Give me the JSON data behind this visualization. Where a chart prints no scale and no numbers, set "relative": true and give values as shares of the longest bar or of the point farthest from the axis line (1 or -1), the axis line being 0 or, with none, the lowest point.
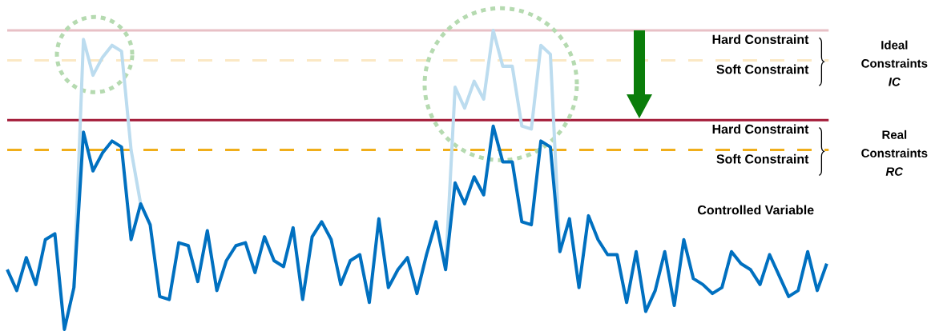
{
  "chart_data": {
    "type": "line",
    "relative": true,
    "categories": [
      null,
      null,
      null,
      null,
      null,
      null,
      null,
      null,
      null,
      null,
      null,
      null,
      null,
      null,
      null,
      null,
      null,
      null,
      null,
      null,
      null,
      null,
      null,
      null,
      null,
      null,
      null,
      null,
      null,
      null,
      null,
      null,
      null,
      null,
      null,
      null,
      null,
      null,
      null,
      null,
      null,
      null,
      null,
      null,
      null,
      null,
      null,
      null,
      null,
      null,
      null,
      null,
      null,
      null,
      null,
      null,
      null,
      null,
      null,
      null,
      null,
      null,
      null,
      null,
      null,
      null,
      null,
      null,
      null,
      null,
      null,
      null,
      null,
      null,
      null,
      null,
      null,
      null,
      null,
      null,
      null,
      null,
      null,
      null,
      null,
      null,
      null
    ],
    "series": [
      {
        "color": "#bcdcef",
        "values": [
          null,
          null,
          null,
          null,
          null,
          null,
          null,
          0.14,
          0.97,
          0.85,
          0.91,
          0.95,
          0.93,
          0.6,
          0.42,
          null,
          null,
          null,
          null,
          null,
          null,
          null,
          null,
          null,
          null,
          null,
          null,
          null,
          null,
          null,
          null,
          null,
          null,
          null,
          null,
          null,
          null,
          null,
          null,
          null,
          null,
          null,
          null,
          null,
          null,
          null,
          0.2,
          0.81,
          0.74,
          0.83,
          0.77,
          1.0,
          0.88,
          0.88,
          0.68,
          0.67,
          0.95,
          0.92,
          0.26,
          null,
          null,
          null,
          null,
          null,
          null,
          null,
          null,
          null,
          null,
          null,
          null,
          null,
          null,
          null,
          null,
          null,
          null,
          null,
          null,
          null,
          null,
          null,
          null,
          null,
          null,
          null,
          null
        ]
      },
      {
        "name": "Controlled Variable",
        "color": "#0070c0",
        "values": [
          0.2,
          0.13,
          0.24,
          0.15,
          0.3,
          0.32,
          0.0,
          0.14,
          0.66,
          0.53,
          0.59,
          0.63,
          0.61,
          0.3,
          0.42,
          0.35,
          0.11,
          0.1,
          0.29,
          0.28,
          0.16,
          0.33,
          0.13,
          0.23,
          0.28,
          0.29,
          0.19,
          0.31,
          0.23,
          0.21,
          0.34,
          0.1,
          0.31,
          0.36,
          0.3,
          0.15,
          0.23,
          0.25,
          0.09,
          0.37,
          0.14,
          0.2,
          0.24,
          0.12,
          0.25,
          0.36,
          0.2,
          0.49,
          0.42,
          0.51,
          0.45,
          0.68,
          0.56,
          0.56,
          0.36,
          0.35,
          0.63,
          0.61,
          0.26,
          0.37,
          0.14,
          0.38,
          0.3,
          0.25,
          0.25,
          0.09,
          0.26,
          0.06,
          0.13,
          0.26,
          0.08,
          0.3,
          0.17,
          0.15,
          0.12,
          0.14,
          0.26,
          0.22,
          0.2,
          0.15,
          0.25,
          0.18,
          0.11,
          0.13,
          0.26,
          0.13,
          0.22
        ]
      }
    ],
    "ref_lines": [
      {
        "axis": "y",
        "value": 1.0,
        "label": "Hard Constraint",
        "color": "#e8c0c6",
        "line_style": "solid"
      },
      {
        "axis": "y",
        "value": 0.9,
        "label": "Soft Constraint",
        "color": "#fbe8c4",
        "line_style": "dashed"
      },
      {
        "axis": "y",
        "value": 0.7,
        "label": "Hard Constraint",
        "color": "#a31a37",
        "line_style": "solid"
      },
      {
        "axis": "y",
        "value": 0.6,
        "label": "Soft Constraint",
        "color": "#f0ae1a",
        "line_style": "dashed"
      }
    ],
    "annotations": [
      "Ideal Constraints *IC*",
      "Real Constraints *RC*"
    ]
  }
}
